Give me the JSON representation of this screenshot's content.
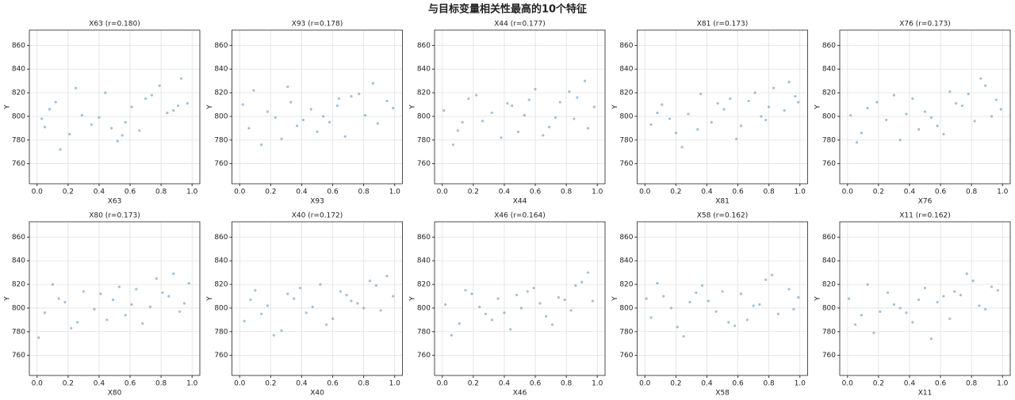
{
  "title": "与目标变量相关性最高的10个特征",
  "chart_data": [
    {
      "type": "scatter",
      "title": "X63 (r=0.180)",
      "x_label": "X63",
      "y_label": "Y",
      "color": "#4682b4",
      "grid": true,
      "xlim": [
        -0.05,
        1.05
      ],
      "ylim": [
        743,
        873
      ],
      "xticks": [
        {
          "value": 0,
          "label": "0.0"
        },
        {
          "value": 0.2,
          "label": "0.2"
        },
        {
          "value": 0.4,
          "label": "0.4"
        },
        {
          "value": 0.6,
          "label": "0.6"
        },
        {
          "value": 0.8,
          "label": "0.8"
        },
        {
          "value": 1,
          "label": "1.0"
        }
      ],
      "yticks": [
        760,
        780,
        800,
        820,
        840,
        860
      ],
      "x": [
        0.03,
        0.12,
        0.21,
        0.08,
        0.35,
        0.44,
        0.29,
        0.52,
        0.61,
        0.57,
        0.7,
        0.66,
        0.79,
        0.88,
        0.93,
        0.97,
        0.15,
        0.4,
        0.48,
        0.74,
        0.84,
        0.25,
        0.55,
        0.91,
        0.05
      ],
      "y": [
        798,
        812,
        785,
        806,
        793,
        820,
        801,
        779,
        808,
        795,
        815,
        788,
        826,
        805,
        832,
        811,
        772,
        799,
        790,
        818,
        803,
        824,
        784,
        809,
        791
      ]
    },
    {
      "type": "scatter",
      "title": "X93 (r=0.178)",
      "x_label": "X93",
      "y_label": "Y",
      "color": "#4682b4",
      "grid": true,
      "xlim": [
        -0.05,
        1.05
      ],
      "ylim": [
        743,
        873
      ],
      "xticks": [
        {
          "value": 0,
          "label": "0.0"
        },
        {
          "value": 0.2,
          "label": "0.2"
        },
        {
          "value": 0.4,
          "label": "0.4"
        },
        {
          "value": 0.6,
          "label": "0.6"
        },
        {
          "value": 0.8,
          "label": "0.8"
        },
        {
          "value": 1,
          "label": "1.0"
        }
      ],
      "yticks": [
        760,
        780,
        800,
        820,
        840,
        860
      ],
      "x": [
        0.06,
        0.18,
        0.27,
        0.33,
        0.41,
        0.09,
        0.5,
        0.63,
        0.58,
        0.72,
        0.81,
        0.86,
        0.95,
        0.14,
        0.23,
        0.37,
        0.46,
        0.68,
        0.77,
        0.99,
        0.02,
        0.54,
        0.89,
        0.31,
        0.64
      ],
      "y": [
        790,
        804,
        781,
        812,
        797,
        822,
        787,
        809,
        795,
        817,
        801,
        828,
        813,
        776,
        799,
        792,
        806,
        783,
        819,
        807,
        810,
        800,
        794,
        825,
        815
      ]
    },
    {
      "type": "scatter",
      "title": "X44 (r=0.177)",
      "x_label": "X44",
      "y_label": "Y",
      "color": "#4682b4",
      "grid": true,
      "xlim": [
        -0.05,
        1.05
      ],
      "ylim": [
        743,
        873
      ],
      "xticks": [
        {
          "value": 0,
          "label": "0.0"
        },
        {
          "value": 0.2,
          "label": "0.2"
        },
        {
          "value": 0.4,
          "label": "0.4"
        },
        {
          "value": 0.6,
          "label": "0.6"
        },
        {
          "value": 0.8,
          "label": "0.8"
        },
        {
          "value": 1,
          "label": "1.0"
        }
      ],
      "yticks": [
        760,
        780,
        800,
        820,
        840,
        860
      ],
      "x": [
        0.01,
        0.1,
        0.17,
        0.26,
        0.38,
        0.45,
        0.53,
        0.6,
        0.69,
        0.76,
        0.85,
        0.92,
        0.98,
        0.07,
        0.22,
        0.32,
        0.49,
        0.56,
        0.73,
        0.82,
        0.94,
        0.13,
        0.42,
        0.65,
        0.87
      ],
      "y": [
        805,
        788,
        815,
        796,
        782,
        809,
        801,
        823,
        791,
        812,
        798,
        830,
        808,
        776,
        818,
        803,
        787,
        814,
        799,
        821,
        790,
        795,
        811,
        784,
        816
      ]
    },
    {
      "type": "scatter",
      "title": "X81 (r=0.173)",
      "x_label": "X81",
      "y_label": "Y",
      "color": "#4682b4",
      "grid": true,
      "xlim": [
        -0.05,
        1.05
      ],
      "ylim": [
        743,
        873
      ],
      "xticks": [
        {
          "value": 0,
          "label": "0.0"
        },
        {
          "value": 0.2,
          "label": "0.2"
        },
        {
          "value": 0.4,
          "label": "0.4"
        },
        {
          "value": 0.6,
          "label": "0.6"
        },
        {
          "value": 0.8,
          "label": "0.8"
        },
        {
          "value": 1,
          "label": "1.0"
        }
      ],
      "yticks": [
        760,
        780,
        800,
        820,
        840,
        860
      ],
      "x": [
        0.04,
        0.11,
        0.2,
        0.28,
        0.36,
        0.43,
        0.51,
        0.59,
        0.67,
        0.75,
        0.83,
        0.9,
        0.97,
        0.16,
        0.24,
        0.47,
        0.62,
        0.71,
        0.8,
        0.93,
        0.08,
        0.34,
        0.55,
        0.78,
        0.99
      ],
      "y": [
        793,
        810,
        786,
        802,
        819,
        795,
        806,
        781,
        813,
        800,
        824,
        805,
        817,
        798,
        774,
        811,
        792,
        820,
        808,
        829,
        803,
        789,
        815,
        797,
        812
      ]
    },
    {
      "type": "scatter",
      "title": "X76 (r=0.173)",
      "x_label": "X76",
      "y_label": "Y",
      "color": "#4682b4",
      "grid": true,
      "xlim": [
        -0.05,
        1.05
      ],
      "ylim": [
        743,
        873
      ],
      "xticks": [
        {
          "value": 0,
          "label": "0.0"
        },
        {
          "value": 0.2,
          "label": "0.2"
        },
        {
          "value": 0.4,
          "label": "0.4"
        },
        {
          "value": 0.6,
          "label": "0.6"
        },
        {
          "value": 0.8,
          "label": "0.8"
        },
        {
          "value": 1,
          "label": "1.0"
        }
      ],
      "yticks": [
        760,
        780,
        800,
        820,
        840,
        860
      ],
      "x": [
        0.02,
        0.09,
        0.19,
        0.25,
        0.34,
        0.42,
        0.5,
        0.58,
        0.66,
        0.74,
        0.82,
        0.89,
        0.96,
        0.13,
        0.3,
        0.46,
        0.54,
        0.7,
        0.86,
        0.99,
        0.06,
        0.38,
        0.62,
        0.78,
        0.93
      ],
      "y": [
        801,
        786,
        812,
        797,
        780,
        815,
        804,
        792,
        821,
        809,
        796,
        826,
        814,
        807,
        818,
        789,
        799,
        811,
        832,
        806,
        778,
        802,
        785,
        819,
        800
      ]
    },
    {
      "type": "scatter",
      "title": "X80 (r=0.173)",
      "x_label": "X80",
      "y_label": "Y",
      "color": "#4682b4",
      "grid": true,
      "xlim": [
        -0.05,
        1.05
      ],
      "ylim": [
        743,
        873
      ],
      "xticks": [
        {
          "value": 0,
          "label": "0.0"
        },
        {
          "value": 0.2,
          "label": "0.2"
        },
        {
          "value": 0.4,
          "label": "0.4"
        },
        {
          "value": 0.6,
          "label": "0.6"
        },
        {
          "value": 0.8,
          "label": "0.8"
        },
        {
          "value": 1,
          "label": "1.0"
        }
      ],
      "yticks": [
        760,
        780,
        800,
        820,
        840,
        860
      ],
      "x": [
        0.05,
        0.14,
        0.22,
        0.3,
        0.37,
        0.45,
        0.53,
        0.61,
        0.68,
        0.77,
        0.85,
        0.92,
        0.98,
        0.01,
        0.18,
        0.41,
        0.57,
        0.64,
        0.73,
        0.88,
        0.1,
        0.26,
        0.49,
        0.81,
        0.95
      ],
      "y": [
        796,
        808,
        783,
        814,
        799,
        790,
        818,
        803,
        787,
        825,
        810,
        797,
        821,
        775,
        805,
        812,
        794,
        816,
        801,
        829,
        820,
        788,
        807,
        813,
        804
      ]
    },
    {
      "type": "scatter",
      "title": "X40 (r=0.172)",
      "x_label": "X40",
      "y_label": "Y",
      "color": "#4682b4",
      "grid": true,
      "xlim": [
        -0.05,
        1.05
      ],
      "ylim": [
        743,
        873
      ],
      "xticks": [
        {
          "value": 0,
          "label": "0.0"
        },
        {
          "value": 0.2,
          "label": "0.2"
        },
        {
          "value": 0.4,
          "label": "0.4"
        },
        {
          "value": 0.6,
          "label": "0.6"
        },
        {
          "value": 0.8,
          "label": "0.8"
        },
        {
          "value": 1,
          "label": "1.0"
        }
      ],
      "yticks": [
        760,
        780,
        800,
        820,
        840,
        860
      ],
      "x": [
        0.03,
        0.1,
        0.18,
        0.27,
        0.35,
        0.43,
        0.52,
        0.6,
        0.69,
        0.76,
        0.84,
        0.91,
        0.99,
        0.07,
        0.22,
        0.39,
        0.47,
        0.56,
        0.65,
        0.8,
        0.95,
        0.14,
        0.31,
        0.72,
        0.88
      ],
      "y": [
        789,
        815,
        802,
        781,
        808,
        796,
        820,
        791,
        811,
        804,
        823,
        798,
        810,
        807,
        777,
        817,
        801,
        786,
        814,
        800,
        827,
        795,
        812,
        806,
        819
      ]
    },
    {
      "type": "scatter",
      "title": "X46 (r=0.164)",
      "x_label": "X46",
      "y_label": "Y",
      "color": "#4682b4",
      "grid": true,
      "xlim": [
        -0.05,
        1.05
      ],
      "ylim": [
        743,
        873
      ],
      "xticks": [
        {
          "value": 0,
          "label": "0.0"
        },
        {
          "value": 0.2,
          "label": "0.2"
        },
        {
          "value": 0.4,
          "label": "0.4"
        },
        {
          "value": 0.6,
          "label": "0.6"
        },
        {
          "value": 0.8,
          "label": "0.8"
        },
        {
          "value": 1,
          "label": "1.0"
        }
      ],
      "yticks": [
        760,
        780,
        800,
        820,
        840,
        860
      ],
      "x": [
        0.02,
        0.11,
        0.19,
        0.28,
        0.36,
        0.44,
        0.51,
        0.59,
        0.67,
        0.75,
        0.83,
        0.9,
        0.97,
        0.06,
        0.15,
        0.32,
        0.48,
        0.63,
        0.71,
        0.86,
        0.94,
        0.24,
        0.4,
        0.55,
        0.79
      ],
      "y": [
        803,
        787,
        812,
        795,
        808,
        782,
        800,
        817,
        793,
        809,
        798,
        822,
        806,
        777,
        815,
        790,
        811,
        804,
        786,
        819,
        830,
        801,
        796,
        814,
        807
      ]
    },
    {
      "type": "scatter",
      "title": "X58 (r=0.162)",
      "x_label": "X58",
      "y_label": "Y",
      "color": "#4682b4",
      "grid": true,
      "xlim": [
        -0.05,
        1.05
      ],
      "ylim": [
        743,
        873
      ],
      "xticks": [
        {
          "value": 0,
          "label": "0.0"
        },
        {
          "value": 0.2,
          "label": "0.2"
        },
        {
          "value": 0.4,
          "label": "0.4"
        },
        {
          "value": 0.6,
          "label": "0.6"
        },
        {
          "value": 0.8,
          "label": "0.8"
        },
        {
          "value": 1,
          "label": "1.0"
        }
      ],
      "yticks": [
        760,
        780,
        800,
        820,
        840,
        860
      ],
      "x": [
        0.04,
        0.12,
        0.21,
        0.29,
        0.37,
        0.46,
        0.54,
        0.62,
        0.7,
        0.78,
        0.86,
        0.93,
        0.99,
        0.08,
        0.17,
        0.25,
        0.41,
        0.5,
        0.66,
        0.74,
        0.82,
        0.96,
        0.01,
        0.33,
        0.58
      ],
      "y": [
        792,
        810,
        784,
        805,
        819,
        797,
        788,
        812,
        802,
        824,
        795,
        816,
        809,
        821,
        800,
        776,
        806,
        814,
        790,
        803,
        828,
        799,
        808,
        813,
        785
      ]
    },
    {
      "type": "scatter",
      "title": "X11 (r=0.162)",
      "x_label": "X11",
      "y_label": "Y",
      "color": "#4682b4",
      "grid": true,
      "xlim": [
        -0.05,
        1.05
      ],
      "ylim": [
        743,
        873
      ],
      "xticks": [
        {
          "value": 0,
          "label": "0.0"
        },
        {
          "value": 0.2,
          "label": "0.2"
        },
        {
          "value": 0.4,
          "label": "0.4"
        },
        {
          "value": 0.6,
          "label": "0.6"
        },
        {
          "value": 0.8,
          "label": "0.8"
        },
        {
          "value": 1,
          "label": "1.0"
        }
      ],
      "yticks": [
        760,
        780,
        800,
        820,
        840,
        860
      ],
      "x": [
        0.01,
        0.09,
        0.17,
        0.26,
        0.34,
        0.42,
        0.5,
        0.58,
        0.66,
        0.73,
        0.81,
        0.89,
        0.97,
        0.05,
        0.13,
        0.3,
        0.38,
        0.54,
        0.62,
        0.77,
        0.85,
        0.93,
        0.21,
        0.46,
        0.69
      ],
      "y": [
        808,
        794,
        779,
        813,
        800,
        788,
        817,
        805,
        791,
        811,
        823,
        799,
        815,
        786,
        820,
        803,
        796,
        774,
        810,
        829,
        802,
        818,
        797,
        807,
        814
      ]
    }
  ]
}
